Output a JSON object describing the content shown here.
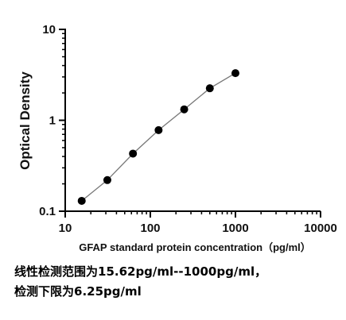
{
  "chart_data": {
    "type": "scatter",
    "title": "",
    "xlabel": "GFAP standard protein concentration（pg/ml）",
    "ylabel": "Optical Density",
    "x_scale": "log",
    "y_scale": "log",
    "xlim": [
      10,
      10000
    ],
    "ylim": [
      0.1,
      10
    ],
    "x_ticks": [
      "10",
      "100",
      "1000",
      "10000"
    ],
    "y_ticks": [
      "0.1",
      "1",
      "10"
    ],
    "grid": false,
    "legend": "none",
    "series": [
      {
        "x": [
          15.62,
          31.25,
          62.5,
          125,
          250,
          500,
          1000
        ],
        "y": [
          0.13,
          0.22,
          0.43,
          0.78,
          1.32,
          2.25,
          3.3
        ]
      }
    ]
  },
  "captions": {
    "line1": "线性检测范围为15.62pg/ml--1000pg/ml，",
    "line2": "检测下限为6.25pg/ml"
  }
}
